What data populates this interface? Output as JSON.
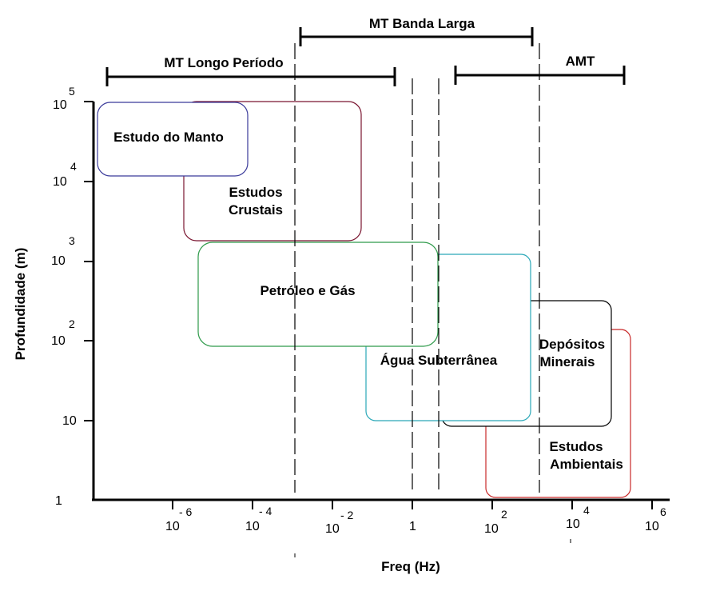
{
  "chart_data": {
    "type": "diagram",
    "xlabel": "Freq (Hz)",
    "ylabel": "Profundidade (m)",
    "y_ticks": [
      {
        "base": "10",
        "exp": "5"
      },
      {
        "base": "10",
        "exp": "4"
      },
      {
        "base": "10",
        "exp": "3"
      },
      {
        "base": "10",
        "exp": "2"
      },
      {
        "base": "10",
        "exp": ""
      },
      {
        "base": "1",
        "exp": ""
      }
    ],
    "x_ticks": [
      {
        "base": "10",
        "exp": "- 6"
      },
      {
        "base": "10",
        "exp": "- 4"
      },
      {
        "base": "10",
        "exp": "- 2"
      },
      {
        "base": "1",
        "exp": ""
      },
      {
        "base": "10",
        "exp": "2"
      },
      {
        "base": "10",
        "exp": "4"
      },
      {
        "base": "10",
        "exp": "6"
      }
    ],
    "ranges": [
      {
        "label": "MT Banda Larga"
      },
      {
        "label": "MT Longo Período"
      },
      {
        "label": "AMT"
      }
    ],
    "regions": [
      {
        "lines": [
          "Estudo do Manto"
        ],
        "color": "#3a3a9a"
      },
      {
        "lines": [
          "Estudos",
          "Crustais"
        ],
        "color": "#7a1530"
      },
      {
        "lines": [
          "Petróleo e Gás"
        ],
        "color": "#2e9a4a"
      },
      {
        "lines": [
          "Água Subterrânea"
        ],
        "color": "#2aa8b8"
      },
      {
        "lines": [
          "Depósitos",
          "Minerais"
        ],
        "color": "#000000"
      },
      {
        "lines": [
          "Estudos",
          "Ambientais"
        ],
        "color": "#c82828"
      }
    ]
  }
}
